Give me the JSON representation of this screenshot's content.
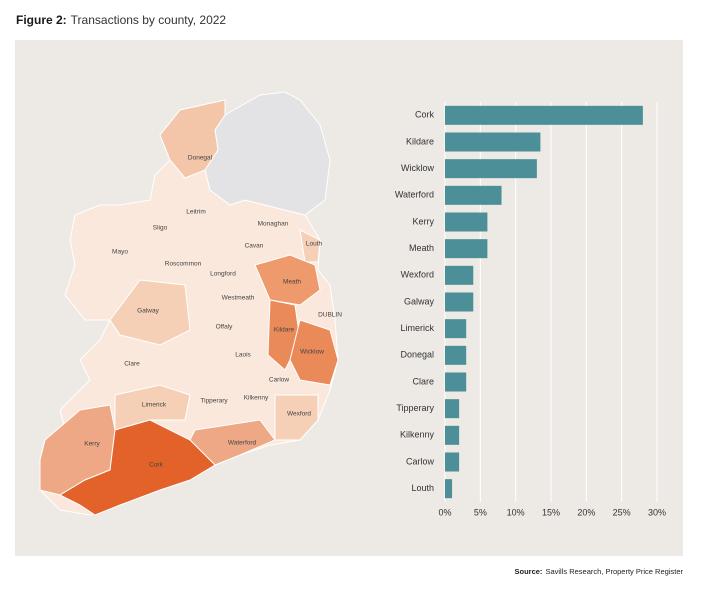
{
  "chart_data": {
    "type": "bar",
    "orientation": "horizontal",
    "figure_label": "Figure 2:",
    "title": "Transactions by county, 2022",
    "categories": [
      "Cork",
      "Kildare",
      "Wicklow",
      "Waterford",
      "Kerry",
      "Meath",
      "Wexford",
      "Galway",
      "Limerick",
      "Donegal",
      "Clare",
      "Tipperary",
      "Kilkenny",
      "Carlow",
      "Louth"
    ],
    "values": [
      28,
      13.5,
      13,
      8,
      6,
      6,
      4,
      4,
      3,
      3,
      3,
      2,
      2,
      2,
      1
    ],
    "color": "#4c8f99",
    "xlim": [
      0,
      30
    ],
    "xticks": [
      {
        "value": 0,
        "label": "0%"
      },
      {
        "value": 5,
        "label": "5%"
      },
      {
        "value": 10,
        "label": "10%"
      },
      {
        "value": 15,
        "label": "15%"
      },
      {
        "value": 20,
        "label": "20%"
      },
      {
        "value": 25,
        "label": "25%"
      },
      {
        "value": 30,
        "label": "30%"
      }
    ],
    "grid": true,
    "source_label": "Source:",
    "source": "Savills Research, Property Price Register"
  },
  "map": {
    "labels": [
      "Donegal",
      "Leitrim",
      "Sligo",
      "Mayo",
      "Monaghan",
      "Cavan",
      "Louth",
      "Roscommon",
      "Longford",
      "Meath",
      "Westmeath",
      "Galway",
      "Offaly",
      "DUBLIN",
      "Kildare",
      "Laois",
      "Wicklow",
      "Clare",
      "Carlow",
      "Kilkenny",
      "Tipperary",
      "Limerick",
      "Wexford",
      "Kerry",
      "Waterford",
      "Cork"
    ]
  }
}
